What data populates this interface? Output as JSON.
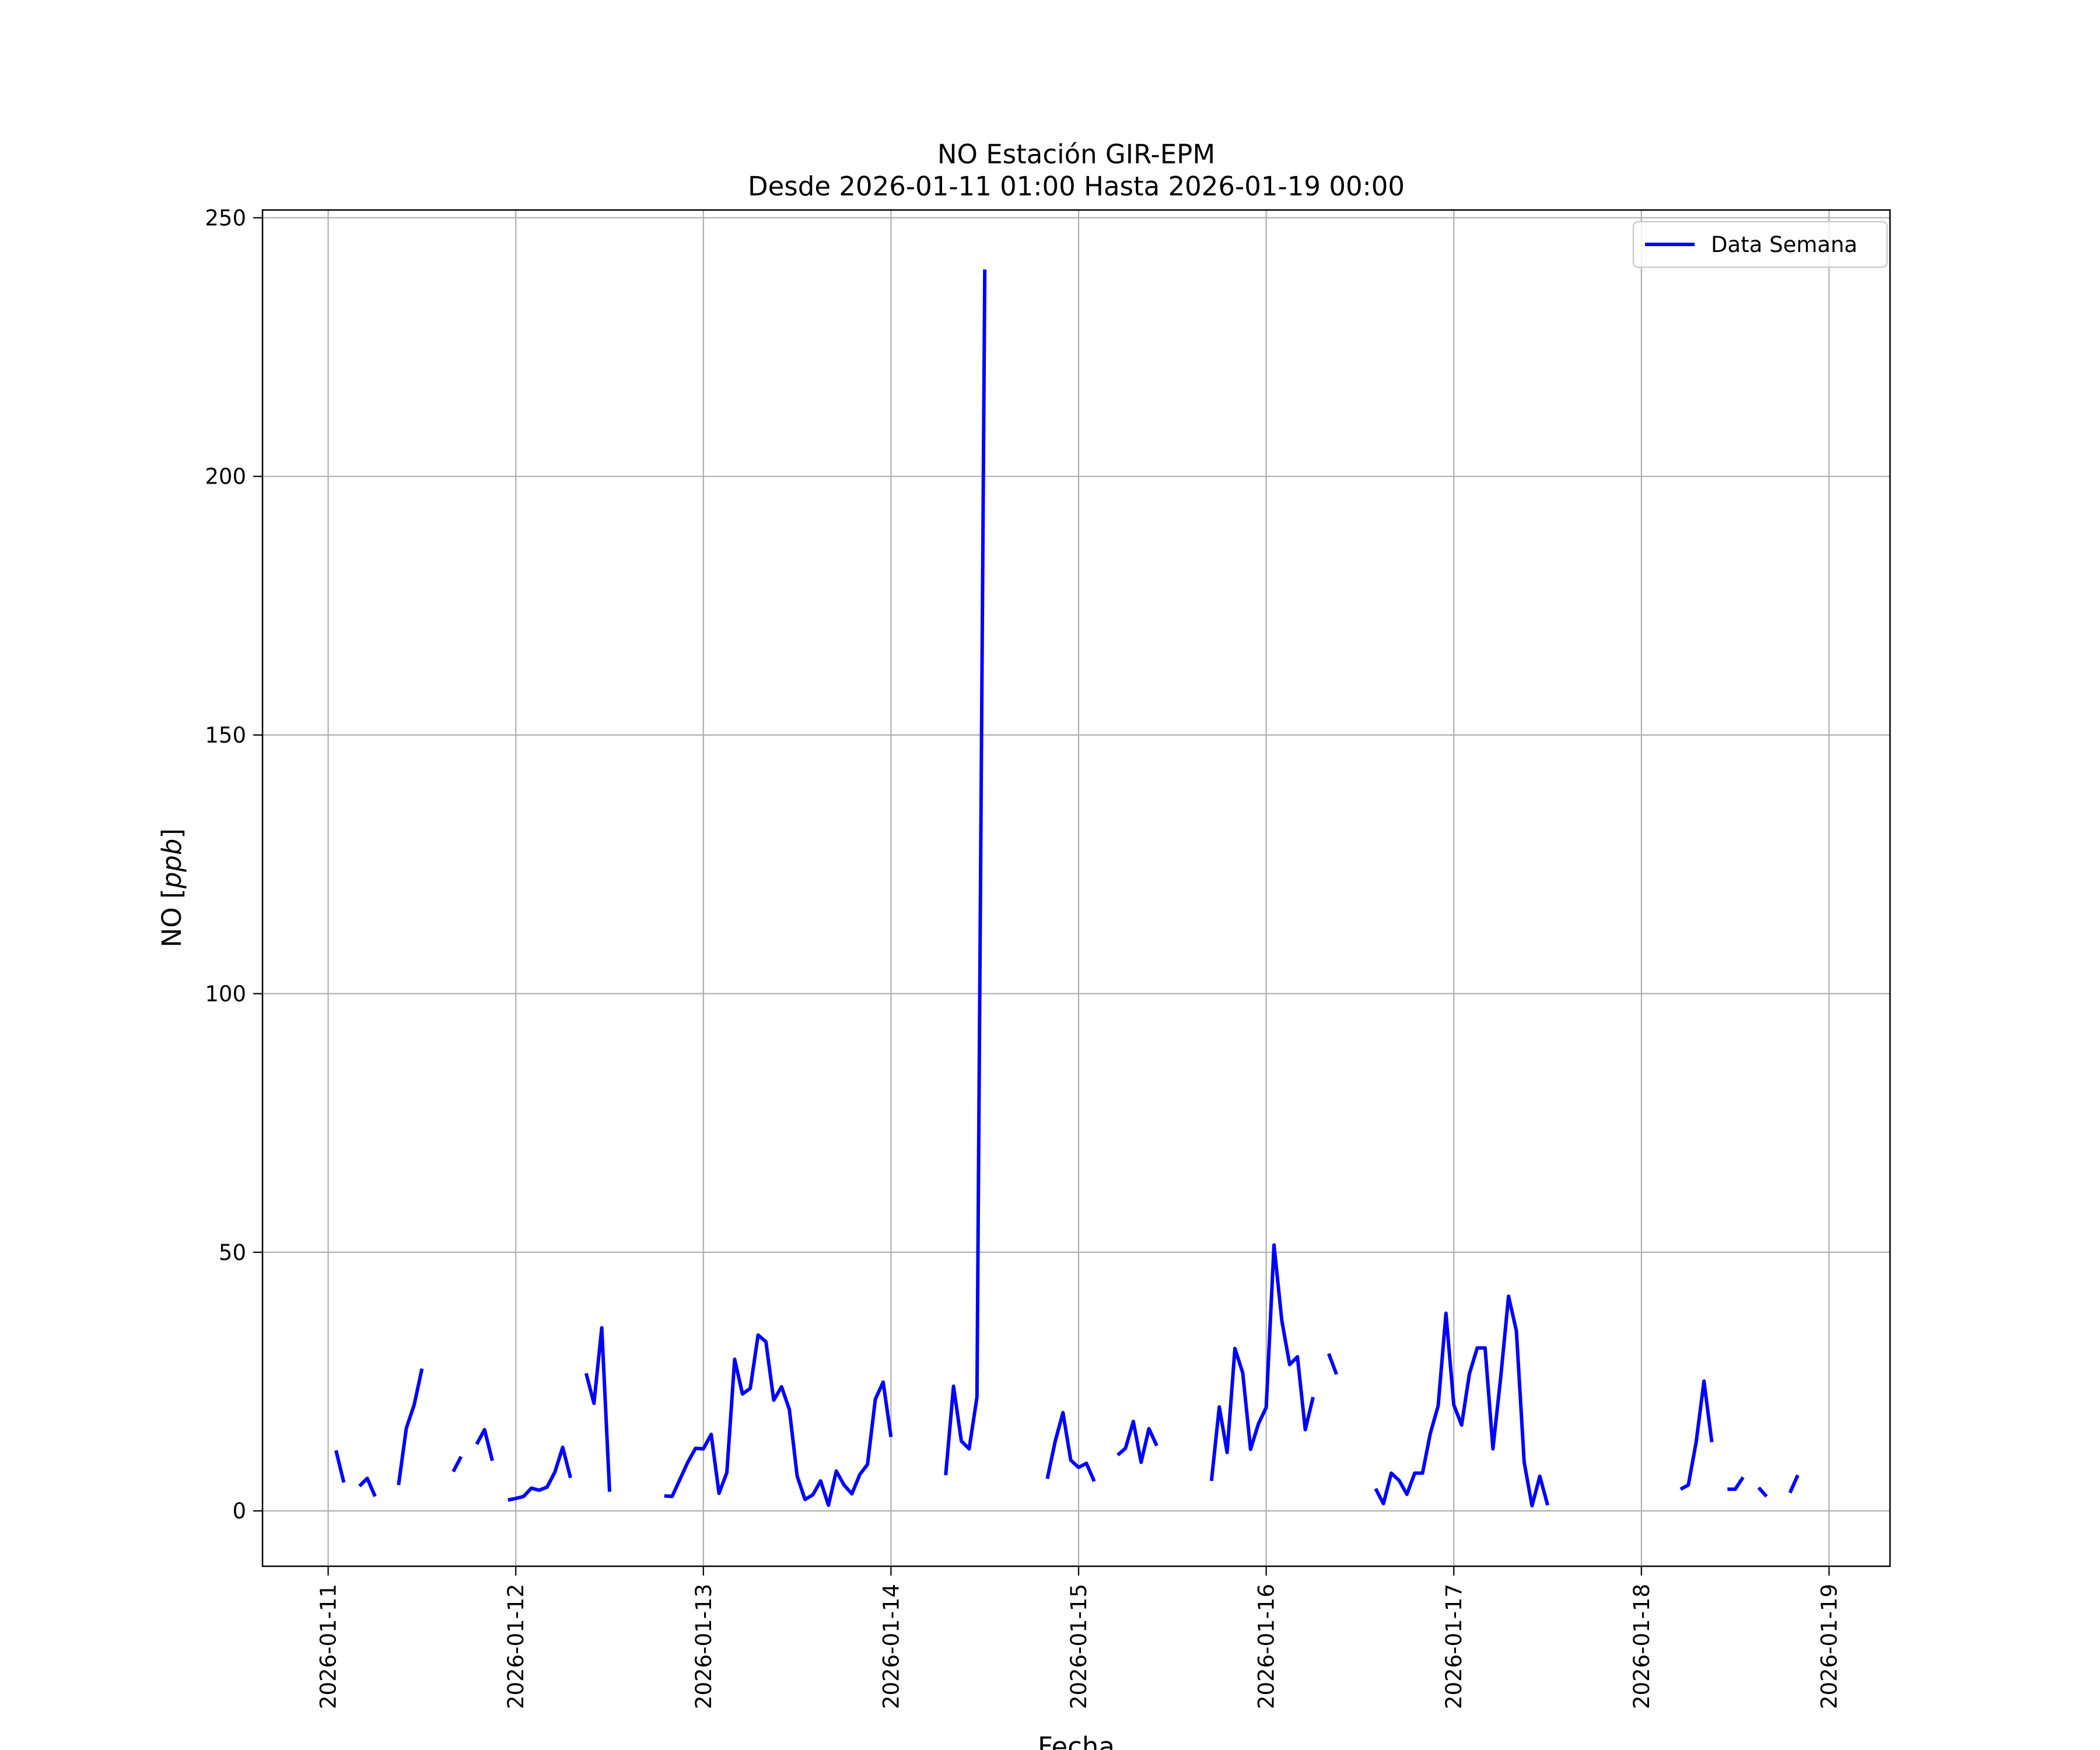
{
  "chart_data": {
    "type": "line",
    "title": "NO Estación GIR-EPM",
    "subtitle": "Desde 2026-01-11 01:00 Hasta 2026-01-19 00:00",
    "xlabel": "Fecha",
    "ylabel_text": "NO [",
    "ylabel_unit": "ppb",
    "ylabel_close": "]",
    "x_ticks": [
      "2026-01-11",
      "2026-01-12",
      "2026-01-13",
      "2026-01-14",
      "2026-01-15",
      "2026-01-16",
      "2026-01-17",
      "2026-01-18",
      "2026-01-19"
    ],
    "y_ticks": [
      "0",
      "50",
      "100",
      "150",
      "200",
      "250"
    ],
    "y_tick_values": [
      0,
      50,
      100,
      150,
      200,
      250
    ],
    "xlim": [
      "2026-01-10 15:36",
      "2026-01-19 07:48"
    ],
    "ylim": [
      -10.7,
      251.5
    ],
    "grid": true,
    "legend": {
      "position": "top-right",
      "entries": [
        "Data Semana"
      ]
    },
    "series_color": "#0000ff",
    "series": [
      {
        "name": "Data Semana",
        "segments": [
          [
            [
              "2026-01-11 01:00",
              11.7
            ],
            [
              "2026-01-11 02:00",
              5.5
            ]
          ],
          [
            [
              "2026-01-11 04:00",
              4.8
            ],
            [
              "2026-01-11 05:00",
              6.3
            ],
            [
              "2026-01-11 06:00",
              2.8
            ]
          ],
          [
            [
              "2026-01-11 09:00",
              5.0
            ],
            [
              "2026-01-11 10:00",
              16.0
            ],
            [
              "2026-01-11 11:00",
              20.5
            ],
            [
              "2026-01-11 12:00",
              27.5
            ]
          ],
          [
            [
              "2026-01-11 16:00",
              7.6
            ],
            [
              "2026-01-11 17:00",
              10.5
            ]
          ],
          [
            [
              "2026-01-11 19:00",
              12.9
            ],
            [
              "2026-01-11 20:00",
              15.7
            ],
            [
              "2026-01-11 21:00",
              9.7
            ]
          ],
          [
            [
              "2026-01-11 23:00",
              2.1
            ],
            [
              "2026-01-12 00:00",
              2.4
            ],
            [
              "2026-01-12 01:00",
              2.8
            ],
            [
              "2026-01-12 02:00",
              4.4
            ],
            [
              "2026-01-12 03:00",
              4.0
            ],
            [
              "2026-01-12 04:00",
              4.6
            ],
            [
              "2026-01-12 05:00",
              7.5
            ],
            [
              "2026-01-12 06:00",
              12.3
            ],
            [
              "2026-01-12 07:00",
              6.4
            ]
          ],
          [
            [
              "2026-01-12 09:00",
              26.6
            ],
            [
              "2026-01-12 10:00",
              20.8
            ],
            [
              "2026-01-12 11:00",
              35.4
            ],
            [
              "2026-01-12 12:00",
              3.7
            ]
          ],
          [
            [
              "2026-01-12 19:00",
              2.9
            ],
            [
              "2026-01-12 20:00",
              2.8
            ],
            [
              "2026-01-12 21:00",
              6.1
            ],
            [
              "2026-01-12 22:00",
              9.4
            ],
            [
              "2026-01-12 23:00",
              12.1
            ],
            [
              "2026-01-13 00:00",
              12.0
            ],
            [
              "2026-01-13 01:00",
              14.8
            ],
            [
              "2026-01-13 02:00",
              3.4
            ],
            [
              "2026-01-13 03:00",
              7.4
            ],
            [
              "2026-01-13 04:00",
              29.3
            ],
            [
              "2026-01-13 05:00",
              22.6
            ],
            [
              "2026-01-13 06:00",
              23.7
            ],
            [
              "2026-01-13 07:00",
              34.0
            ],
            [
              "2026-01-13 08:00",
              32.7
            ],
            [
              "2026-01-13 09:00",
              21.4
            ],
            [
              "2026-01-13 10:00",
              24.0
            ],
            [
              "2026-01-13 11:00",
              19.6
            ],
            [
              "2026-01-13 12:00",
              6.7
            ],
            [
              "2026-01-13 13:00",
              2.2
            ],
            [
              "2026-01-13 14:00",
              3.1
            ],
            [
              "2026-01-13 15:00",
              5.8
            ],
            [
              "2026-01-13 16:00",
              1.1
            ],
            [
              "2026-01-13 17:00",
              7.7
            ],
            [
              "2026-01-13 18:00",
              5.0
            ],
            [
              "2026-01-13 19:00",
              3.3
            ],
            [
              "2026-01-13 20:00",
              7.0
            ],
            [
              "2026-01-13 21:00",
              9.0
            ],
            [
              "2026-01-13 22:00",
              21.6
            ],
            [
              "2026-01-13 23:00",
              24.9
            ],
            [
              "2026-01-14 00:00",
              14.3
            ]
          ],
          [
            [
              "2026-01-14 07:00",
              6.9
            ],
            [
              "2026-01-14 08:00",
              24.1
            ],
            [
              "2026-01-14 09:00",
              13.5
            ],
            [
              "2026-01-14 10:00",
              12.0
            ],
            [
              "2026-01-14 11:00",
              22.0
            ],
            [
              "2026-01-14 12:00",
              240.0
            ]
          ],
          [
            [
              "2026-01-14 20:00",
              6.2
            ],
            [
              "2026-01-14 21:00",
              13.4
            ],
            [
              "2026-01-14 22:00",
              19.0
            ],
            [
              "2026-01-14 23:00",
              9.8
            ],
            [
              "2026-01-15 00:00",
              8.4
            ],
            [
              "2026-01-15 01:00",
              9.2
            ],
            [
              "2026-01-15 02:00",
              5.7
            ]
          ],
          [
            [
              "2026-01-15 05:00",
              10.8
            ],
            [
              "2026-01-15 06:00",
              12.1
            ],
            [
              "2026-01-15 07:00",
              17.3
            ],
            [
              "2026-01-15 08:00",
              9.4
            ],
            [
              "2026-01-15 09:00",
              15.9
            ],
            [
              "2026-01-15 10:00",
              12.6
            ]
          ],
          [
            [
              "2026-01-15 17:00",
              5.8
            ],
            [
              "2026-01-15 18:00",
              20.1
            ],
            [
              "2026-01-15 19:00",
              11.3
            ],
            [
              "2026-01-15 20:00",
              31.4
            ],
            [
              "2026-01-15 21:00",
              26.7
            ],
            [
              "2026-01-15 22:00",
              11.9
            ],
            [
              "2026-01-15 23:00",
              16.8
            ],
            [
              "2026-01-16 00:00",
              20.0
            ],
            [
              "2026-01-16 01:00",
              51.4
            ],
            [
              "2026-01-16 02:00",
              36.8
            ],
            [
              "2026-01-16 03:00",
              28.3
            ],
            [
              "2026-01-16 04:00",
              29.8
            ],
            [
              "2026-01-16 05:00",
              15.7
            ],
            [
              "2026-01-16 06:00",
              22.0
            ]
          ],
          [
            [
              "2026-01-16 08:00",
              30.4
            ],
            [
              "2026-01-16 09:00",
              26.4
            ]
          ],
          [
            [
              "2026-01-16 14:00",
              4.3
            ],
            [
              "2026-01-16 15:00",
              1.4
            ],
            [
              "2026-01-16 16:00",
              7.3
            ],
            [
              "2026-01-16 17:00",
              5.9
            ],
            [
              "2026-01-16 18:00",
              3.2
            ],
            [
              "2026-01-16 19:00",
              7.3
            ],
            [
              "2026-01-16 20:00",
              7.3
            ],
            [
              "2026-01-16 21:00",
              15.0
            ],
            [
              "2026-01-16 22:00",
              20.3
            ],
            [
              "2026-01-16 23:00",
              38.2
            ],
            [
              "2026-01-17 00:00",
              20.5
            ],
            [
              "2026-01-17 01:00",
              16.6
            ],
            [
              "2026-01-17 02:00",
              26.5
            ],
            [
              "2026-01-17 03:00",
              31.5
            ],
            [
              "2026-01-17 04:00",
              31.5
            ],
            [
              "2026-01-17 05:00",
              12.0
            ],
            [
              "2026-01-17 06:00",
              25.9
            ],
            [
              "2026-01-17 07:00",
              41.5
            ],
            [
              "2026-01-17 08:00",
              34.8
            ],
            [
              "2026-01-17 09:00",
              9.4
            ],
            [
              "2026-01-17 10:00",
              1.0
            ],
            [
              "2026-01-17 11:00",
              6.7
            ],
            [
              "2026-01-17 12:00",
              1.1
            ]
          ],
          [
            [
              "2026-01-18 05:00",
              4.2
            ],
            [
              "2026-01-18 06:00",
              5.0
            ],
            [
              "2026-01-18 07:00",
              13.3
            ],
            [
              "2026-01-18 08:00",
              25.1
            ],
            [
              "2026-01-18 09:00",
              13.3
            ]
          ],
          [
            [
              "2026-01-18 11:00",
              4.2
            ],
            [
              "2026-01-18 12:00",
              4.2
            ],
            [
              "2026-01-18 13:00",
              6.5
            ]
          ],
          [
            [
              "2026-01-18 15:00",
              4.5
            ],
            [
              "2026-01-18 16:00",
              2.8
            ]
          ],
          [
            [
              "2026-01-18 19:00",
              3.5
            ],
            [
              "2026-01-18 20:00",
              6.9
            ]
          ]
        ]
      }
    ]
  }
}
